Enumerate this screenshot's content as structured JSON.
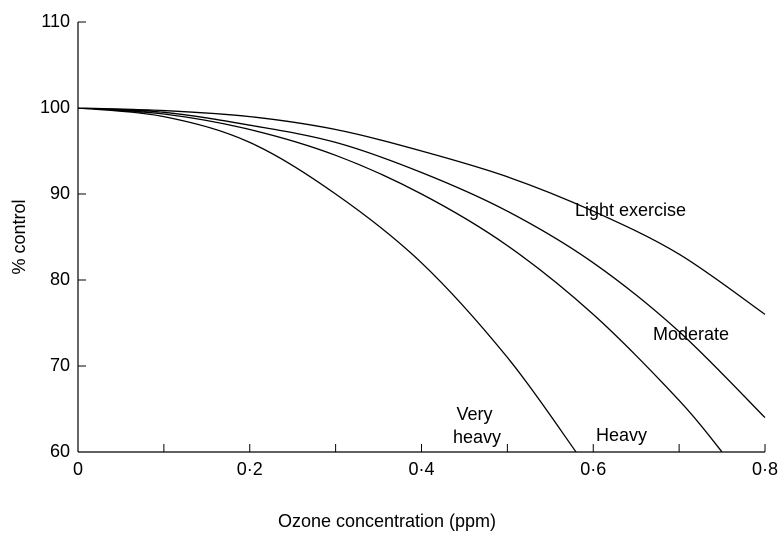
{
  "chart_data": {
    "type": "line",
    "x_label": "Ozone concentration (ppm)",
    "y_label": "% control",
    "xlim": [
      0,
      0.8
    ],
    "ylim": [
      60,
      110
    ],
    "xticks": [
      0,
      {
        "value": 0.2,
        "label": "0·2"
      },
      {
        "value": 0.4,
        "label": "0·4"
      },
      {
        "value": 0.6,
        "label": "0·6"
      },
      {
        "value": 0.8,
        "label": "0·8"
      }
    ],
    "xminor_ticks": [
      0.1,
      0.3,
      0.5,
      0.7
    ],
    "yticks": [
      60,
      70,
      80,
      90,
      100,
      110
    ],
    "grid": false,
    "series": [
      {
        "name": "Light exercise",
        "color": "#000000",
        "x": [
          0,
          0.1,
          0.2,
          0.3,
          0.4,
          0.5,
          0.6,
          0.7,
          0.8
        ],
        "values": [
          100,
          99.7,
          99,
          97.5,
          95,
          92,
          88,
          83,
          76
        ]
      },
      {
        "name": "Moderate",
        "color": "#000000",
        "x": [
          0,
          0.1,
          0.2,
          0.3,
          0.4,
          0.5,
          0.6,
          0.7,
          0.8
        ],
        "values": [
          100,
          99.5,
          98,
          96,
          92.5,
          88,
          82,
          74,
          64
        ]
      },
      {
        "name": "Heavy",
        "color": "#000000",
        "x": [
          0,
          0.1,
          0.2,
          0.3,
          0.4,
          0.5,
          0.6,
          0.7,
          0.75
        ],
        "values": [
          100,
          99.3,
          97.5,
          94.5,
          90,
          84,
          76,
          66,
          60
        ]
      },
      {
        "name": "Very heavy",
        "color": "#000000",
        "x": [
          0,
          0.1,
          0.2,
          0.3,
          0.4,
          0.5,
          0.58
        ],
        "values": [
          100,
          99,
          96,
          90,
          82,
          71,
          60
        ]
      }
    ]
  }
}
